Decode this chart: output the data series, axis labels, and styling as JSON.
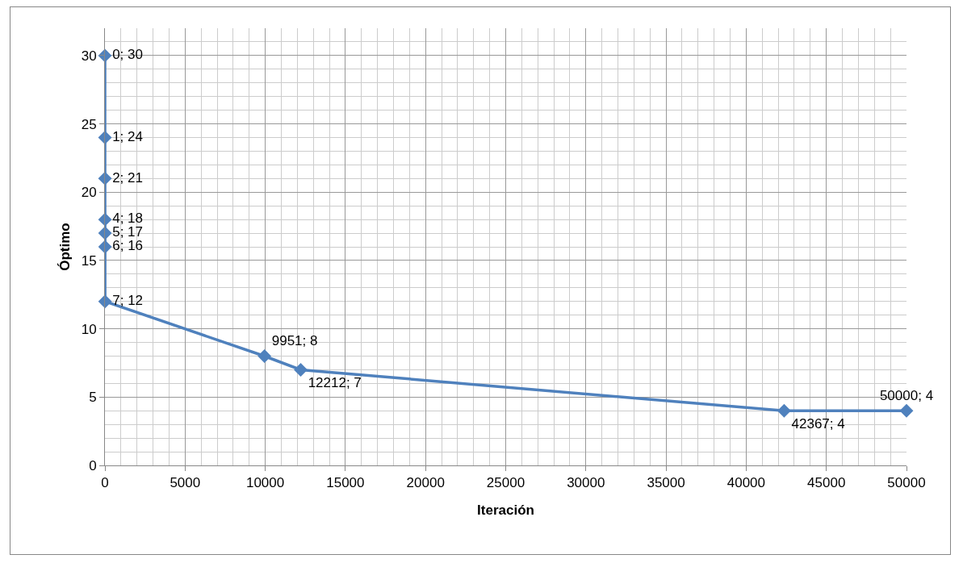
{
  "chart_data": {
    "type": "line",
    "xlabel": "Iteración",
    "ylabel": "Óptimo",
    "x": [
      0,
      1,
      2,
      4,
      5,
      6,
      7,
      9951,
      12212,
      42367,
      50000
    ],
    "values": [
      30,
      24,
      21,
      18,
      17,
      16,
      12,
      8,
      7,
      4,
      4
    ],
    "value_labels": [
      "0; 30",
      "1; 24",
      "2; 21",
      "4; 18",
      "5; 17",
      "6; 16",
      "7; 12",
      "9951; 8",
      "12212; 7",
      "42367; 4",
      "50000; 4"
    ],
    "color": "#4f81bd",
    "marker": "diamond",
    "line_style": "solid",
    "xlim": [
      0,
      50000
    ],
    "xticks": [
      0,
      5000,
      10000,
      15000,
      20000,
      25000,
      30000,
      35000,
      40000,
      45000,
      50000
    ],
    "ylim": [
      0,
      32
    ],
    "yticks": [
      0,
      5,
      10,
      15,
      20,
      25,
      30
    ],
    "grid": true
  }
}
